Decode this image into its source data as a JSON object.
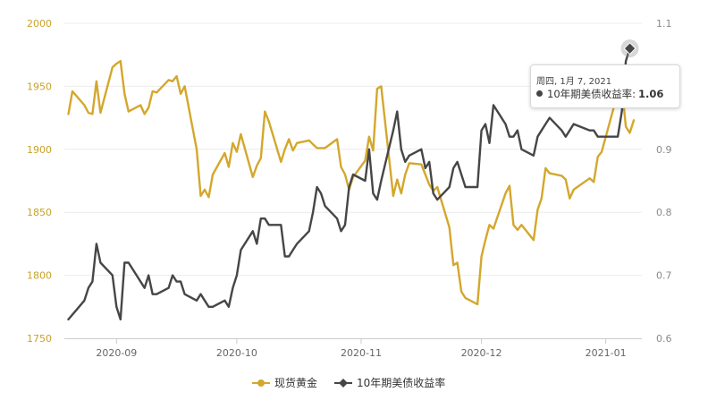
{
  "chart_data": {
    "type": "line",
    "x_axis": {
      "ticks": [
        "2020-09",
        "2020-10",
        "2020-11",
        "2020-12",
        "2021-01"
      ]
    },
    "y_left": {
      "min": 1750,
      "max": 2000,
      "ticks": [
        1750,
        1800,
        1850,
        1900,
        1950,
        2000
      ]
    },
    "y_right": {
      "min": 0.6,
      "max": 1.1,
      "ticks": [
        0.6,
        0.7,
        0.8,
        0.9,
        1.0,
        1.1
      ]
    },
    "grid": true,
    "legend_position": "bottom-center",
    "series": [
      {
        "name": "现货黄金",
        "axis": "left",
        "color": "#d4a72c",
        "x": [
          "2020-08-20",
          "2020-08-21",
          "2020-08-24",
          "2020-08-25",
          "2020-08-26",
          "2020-08-27",
          "2020-08-28",
          "2020-08-31",
          "2020-09-01",
          "2020-09-02",
          "2020-09-03",
          "2020-09-04",
          "2020-09-07",
          "2020-09-08",
          "2020-09-09",
          "2020-09-10",
          "2020-09-11",
          "2020-09-14",
          "2020-09-15",
          "2020-09-16",
          "2020-09-17",
          "2020-09-18",
          "2020-09-21",
          "2020-09-22",
          "2020-09-23",
          "2020-09-24",
          "2020-09-25",
          "2020-09-28",
          "2020-09-29",
          "2020-09-30",
          "2020-10-01",
          "2020-10-02",
          "2020-10-05",
          "2020-10-06",
          "2020-10-07",
          "2020-10-08",
          "2020-10-09",
          "2020-10-12",
          "2020-10-13",
          "2020-10-14",
          "2020-10-15",
          "2020-10-16",
          "2020-10-19",
          "2020-10-20",
          "2020-10-21",
          "2020-10-22",
          "2020-10-23",
          "2020-10-26",
          "2020-10-27",
          "2020-10-28",
          "2020-10-29",
          "2020-10-30",
          "2020-11-02",
          "2020-11-03",
          "2020-11-04",
          "2020-11-05",
          "2020-11-06",
          "2020-11-09",
          "2020-11-10",
          "2020-11-11",
          "2020-11-12",
          "2020-11-13",
          "2020-11-16",
          "2020-11-17",
          "2020-11-18",
          "2020-11-19",
          "2020-11-20",
          "2020-11-23",
          "2020-11-24",
          "2020-11-25",
          "2020-11-26",
          "2020-11-27",
          "2020-11-30",
          "2020-12-01",
          "2020-12-02",
          "2020-12-03",
          "2020-12-04",
          "2020-12-07",
          "2020-12-08",
          "2020-12-09",
          "2020-12-10",
          "2020-12-11",
          "2020-12-14",
          "2020-12-15",
          "2020-12-16",
          "2020-12-17",
          "2020-12-18",
          "2020-12-21",
          "2020-12-22",
          "2020-12-23",
          "2020-12-24",
          "2020-12-28",
          "2020-12-29",
          "2020-12-30",
          "2020-12-31",
          "2021-01-04",
          "2021-01-05",
          "2021-01-06",
          "2021-01-07",
          "2021-01-08"
        ],
        "values": [
          1928,
          1946,
          1935,
          1929,
          1928,
          1954,
          1929,
          1965,
          1968,
          1970,
          1944,
          1930,
          1935,
          1928,
          1933,
          1946,
          1945,
          1955,
          1954,
          1958,
          1944,
          1950,
          1900,
          1863,
          1868,
          1862,
          1880,
          1897,
          1886,
          1905,
          1898,
          1912,
          1878,
          1887,
          1893,
          1930,
          1922,
          1890,
          1900,
          1908,
          1899,
          1905,
          1907,
          1904,
          1901,
          1901,
          1901,
          1908,
          1886,
          1880,
          1868,
          1878,
          1891,
          1910,
          1899,
          1948,
          1950,
          1863,
          1876,
          1865,
          1880,
          1889,
          1888,
          1880,
          1872,
          1867,
          1870,
          1838,
          1808,
          1810,
          1787,
          1782,
          1777,
          1815,
          1828,
          1840,
          1837,
          1865,
          1871,
          1840,
          1836,
          1840,
          1828,
          1852,
          1861,
          1885,
          1881,
          1879,
          1876,
          1861,
          1868,
          1877,
          1874,
          1894,
          1898,
          1945,
          1950,
          1918,
          1913,
          1923
        ]
      },
      {
        "name": "10年期美债收益率",
        "axis": "right",
        "color": "#464646",
        "x": [
          "2020-08-20",
          "2020-08-24",
          "2020-08-25",
          "2020-08-26",
          "2020-08-27",
          "2020-08-28",
          "2020-08-31",
          "2020-09-01",
          "2020-09-02",
          "2020-09-03",
          "2020-09-04",
          "2020-09-08",
          "2020-09-09",
          "2020-09-10",
          "2020-09-11",
          "2020-09-14",
          "2020-09-15",
          "2020-09-16",
          "2020-09-17",
          "2020-09-18",
          "2020-09-21",
          "2020-09-22",
          "2020-09-23",
          "2020-09-24",
          "2020-09-25",
          "2020-09-28",
          "2020-09-29",
          "2020-09-30",
          "2020-10-01",
          "2020-10-02",
          "2020-10-05",
          "2020-10-06",
          "2020-10-07",
          "2020-10-08",
          "2020-10-09",
          "2020-10-12",
          "2020-10-13",
          "2020-10-14",
          "2020-10-15",
          "2020-10-16",
          "2020-10-19",
          "2020-10-20",
          "2020-10-21",
          "2020-10-22",
          "2020-10-23",
          "2020-10-26",
          "2020-10-27",
          "2020-10-28",
          "2020-10-29",
          "2020-10-30",
          "2020-11-02",
          "2020-11-03",
          "2020-11-04",
          "2020-11-05",
          "2020-11-06",
          "2020-11-09",
          "2020-11-10",
          "2020-11-11",
          "2020-11-12",
          "2020-11-13",
          "2020-11-16",
          "2020-11-17",
          "2020-11-18",
          "2020-11-19",
          "2020-11-20",
          "2020-11-23",
          "2020-11-24",
          "2020-11-25",
          "2020-11-27",
          "2020-11-30",
          "2020-12-01",
          "2020-12-02",
          "2020-12-03",
          "2020-12-04",
          "2020-12-07",
          "2020-12-08",
          "2020-12-09",
          "2020-12-10",
          "2020-12-11",
          "2020-12-14",
          "2020-12-15",
          "2020-12-16",
          "2020-12-17",
          "2020-12-18",
          "2020-12-21",
          "2020-12-22",
          "2020-12-23",
          "2020-12-24",
          "2020-12-28",
          "2020-12-29",
          "2020-12-30",
          "2020-12-31",
          "2021-01-04",
          "2021-01-05",
          "2021-01-06",
          "2021-01-07"
        ],
        "values": [
          0.63,
          0.66,
          0.68,
          0.69,
          0.75,
          0.72,
          0.7,
          0.65,
          0.63,
          0.72,
          0.72,
          0.68,
          0.7,
          0.67,
          0.67,
          0.68,
          0.7,
          0.69,
          0.69,
          0.67,
          0.66,
          0.67,
          0.66,
          0.65,
          0.65,
          0.66,
          0.65,
          0.68,
          0.7,
          0.74,
          0.77,
          0.75,
          0.79,
          0.79,
          0.78,
          0.78,
          0.73,
          0.73,
          0.74,
          0.75,
          0.77,
          0.8,
          0.84,
          0.83,
          0.81,
          0.79,
          0.77,
          0.78,
          0.84,
          0.86,
          0.85,
          0.9,
          0.83,
          0.82,
          0.85,
          0.93,
          0.96,
          0.9,
          0.88,
          0.89,
          0.9,
          0.87,
          0.88,
          0.83,
          0.82,
          0.84,
          0.87,
          0.88,
          0.84,
          0.84,
          0.93,
          0.94,
          0.91,
          0.97,
          0.94,
          0.92,
          0.92,
          0.93,
          0.9,
          0.89,
          0.92,
          0.93,
          0.94,
          0.95,
          0.93,
          0.92,
          0.93,
          0.94,
          0.93,
          0.93,
          0.92,
          0.92,
          0.92,
          0.96,
          1.04,
          1.06
        ]
      }
    ]
  },
  "legend": {
    "items": [
      "现货黄金",
      "10年期美债收益率"
    ]
  },
  "tooltip": {
    "title": "周四, 1月 7, 2021",
    "series_name": "10年期美债收益率:",
    "value": "1.06"
  }
}
